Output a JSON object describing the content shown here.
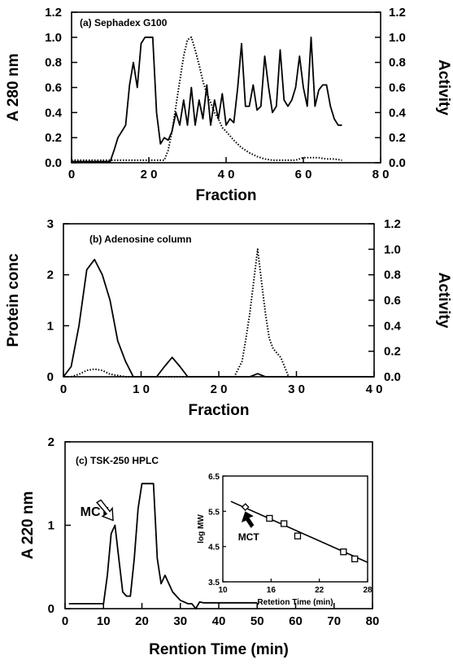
{
  "chart_data": [
    {
      "id": "a",
      "type": "line",
      "annotation": "(a)   Sephadex   G100",
      "xlabel": "Fraction",
      "ylabel": "A 280 nm",
      "y2label": "Activity",
      "xlim": [
        0,
        80
      ],
      "ylim": [
        0,
        1.2
      ],
      "y2lim": [
        0,
        1.2
      ],
      "xticks": [
        "0",
        "2 0",
        "4 0",
        "6 0",
        "8 0"
      ],
      "yticks": [
        "0.0",
        "0.2",
        "0.4",
        "0.6",
        "0.8",
        "1.0",
        "1.2"
      ],
      "y2ticks": [
        "0.0",
        "0.2",
        "0.4",
        "0.6",
        "0.8",
        "1.0",
        "1.2"
      ],
      "series": [
        {
          "style": "solid",
          "axis": "left",
          "x": [
            0,
            10,
            11,
            12,
            13,
            14,
            15,
            16,
            17,
            18,
            19,
            20,
            21,
            22,
            23,
            24,
            25,
            26,
            27,
            28,
            29,
            30,
            31,
            32,
            33,
            34,
            35,
            36,
            37,
            38,
            39,
            40,
            41,
            42,
            43,
            44,
            45,
            46,
            47,
            48,
            49,
            50,
            51,
            52,
            53,
            54,
            55,
            56,
            57,
            58,
            59,
            60,
            61,
            62,
            63,
            64,
            65,
            66,
            67,
            68,
            69,
            70
          ],
          "values": [
            0.01,
            0.01,
            0.1,
            0.2,
            0.25,
            0.3,
            0.62,
            0.8,
            0.6,
            0.95,
            1.0,
            1.0,
            1.0,
            0.4,
            0.15,
            0.2,
            0.18,
            0.25,
            0.4,
            0.3,
            0.5,
            0.3,
            0.6,
            0.3,
            0.5,
            0.35,
            0.62,
            0.3,
            0.5,
            0.35,
            0.55,
            0.3,
            0.35,
            0.32,
            0.6,
            0.95,
            0.45,
            0.45,
            0.62,
            0.42,
            0.45,
            0.85,
            0.6,
            0.4,
            0.45,
            0.9,
            0.5,
            0.45,
            0.5,
            0.6,
            0.85,
            0.6,
            0.45,
            1.0,
            0.45,
            0.58,
            0.62,
            0.62,
            0.45,
            0.35,
            0.3,
            0.3
          ]
        },
        {
          "style": "dotted",
          "axis": "right",
          "x": [
            0,
            24,
            25,
            26,
            27,
            28,
            29,
            30,
            31,
            32,
            33,
            34,
            35,
            36,
            37,
            38,
            39,
            40,
            42,
            44,
            46,
            48,
            50,
            52,
            54,
            56,
            58,
            60,
            62,
            64,
            66,
            68,
            70
          ],
          "values": [
            0.02,
            0.02,
            0.1,
            0.25,
            0.45,
            0.65,
            0.85,
            0.98,
            1.0,
            0.9,
            0.78,
            0.65,
            0.55,
            0.48,
            0.4,
            0.35,
            0.28,
            0.25,
            0.18,
            0.12,
            0.08,
            0.05,
            0.03,
            0.02,
            0.02,
            0.02,
            0.02,
            0.04,
            0.04,
            0.04,
            0.03,
            0.03,
            0.02
          ]
        }
      ]
    },
    {
      "id": "b",
      "type": "line",
      "annotation": "(b)   Adenosine   column",
      "xlabel": "Fraction",
      "ylabel": "Protein conc",
      "y2label": "Activity",
      "xlim": [
        0,
        40
      ],
      "ylim": [
        0,
        3
      ],
      "y2lim": [
        0,
        1.2
      ],
      "xticks": [
        "0",
        "1 0",
        "2 0",
        "3 0",
        "4 0"
      ],
      "yticks": [
        "0",
        "1",
        "2",
        "3"
      ],
      "y2ticks": [
        "0.0",
        "0.2",
        "0.4",
        "0.6",
        "0.8",
        "1.0",
        "1.2"
      ],
      "series": [
        {
          "style": "solid",
          "axis": "left",
          "x": [
            0,
            1,
            2,
            3,
            4,
            5,
            6,
            7,
            8,
            9,
            10,
            11,
            12,
            13,
            14,
            15,
            16,
            17,
            18,
            19,
            20,
            21,
            22,
            23,
            24,
            25,
            26,
            27,
            28,
            29,
            30,
            32,
            34,
            36,
            38,
            40
          ],
          "values": [
            0.0,
            0.2,
            1.0,
            2.1,
            2.3,
            2.0,
            1.5,
            0.7,
            0.3,
            0.0,
            0.0,
            0.0,
            0.0,
            0.2,
            0.38,
            0.2,
            0.0,
            0.0,
            0.0,
            0.0,
            0.0,
            0.0,
            0.0,
            0.0,
            0.0,
            0.06,
            0.0,
            0.0,
            0.0,
            0.0,
            0.0,
            0.0,
            0.0,
            0.0,
            0.0,
            0.0
          ]
        },
        {
          "style": "dotted",
          "axis": "right",
          "x": [
            1,
            2,
            3,
            4,
            5,
            6,
            7,
            8,
            22,
            23,
            23.5,
            24,
            24.5,
            25,
            25.5,
            26,
            26.5,
            27,
            28,
            29
          ],
          "values": [
            0.0,
            0.02,
            0.05,
            0.06,
            0.05,
            0.02,
            0.01,
            0.0,
            0.0,
            0.12,
            0.3,
            0.5,
            0.75,
            1.0,
            0.75,
            0.5,
            0.3,
            0.22,
            0.15,
            0.0
          ]
        }
      ]
    },
    {
      "id": "c",
      "type": "line",
      "annotation": "(c)   TSK-250   HPLC",
      "peak_label": "MCT",
      "xlabel": "Rention Time (min)",
      "ylabel": "A 220 nm",
      "xlim": [
        0,
        80
      ],
      "ylim": [
        0,
        2
      ],
      "xticks": [
        "0",
        "10",
        "20",
        "30",
        "40",
        "50",
        "60",
        "70",
        "80"
      ],
      "yticks": [
        "0",
        "1",
        "2"
      ],
      "series": [
        {
          "style": "solid",
          "axis": "left",
          "x": [
            1,
            9,
            10,
            11,
            12,
            13,
            14,
            15,
            16,
            17,
            18,
            19,
            20,
            21,
            22,
            23,
            24,
            25,
            26,
            27,
            28,
            29,
            30,
            31,
            32,
            33,
            34,
            35,
            36,
            40,
            45,
            50
          ],
          "values": [
            0.06,
            0.06,
            0.06,
            0.4,
            0.9,
            1.0,
            0.6,
            0.2,
            0.15,
            0.15,
            0.6,
            1.2,
            1.5,
            1.5,
            1.5,
            1.5,
            0.6,
            0.3,
            0.4,
            0.3,
            0.2,
            0.15,
            0.1,
            0.08,
            0.06,
            0.06,
            0.0,
            0.08,
            0.07,
            0.07,
            0.07,
            0.07
          ]
        }
      ],
      "inset": {
        "type": "scatter",
        "label": "MCT",
        "xlabel": "Retetion Time (min)",
        "ylabel": "log MW",
        "xlim": [
          10,
          28
        ],
        "ylim": [
          3.5,
          6.5
        ],
        "xticks": [
          "10",
          "16",
          "22",
          "28"
        ],
        "yticks": [
          "3.5",
          "4.5",
          "5.5",
          "6.5"
        ],
        "points": [
          {
            "x": 15.8,
            "y": 5.3
          },
          {
            "x": 17.6,
            "y": 5.15
          },
          {
            "x": 19.3,
            "y": 4.8
          },
          {
            "x": 25,
            "y": 4.35
          },
          {
            "x": 26.4,
            "y": 4.15
          }
        ],
        "mct_point": {
          "x": 12.8,
          "y": 5.62
        },
        "fit": {
          "x": [
            11,
            28
          ],
          "y": [
            5.78,
            4.05
          ]
        }
      }
    }
  ]
}
